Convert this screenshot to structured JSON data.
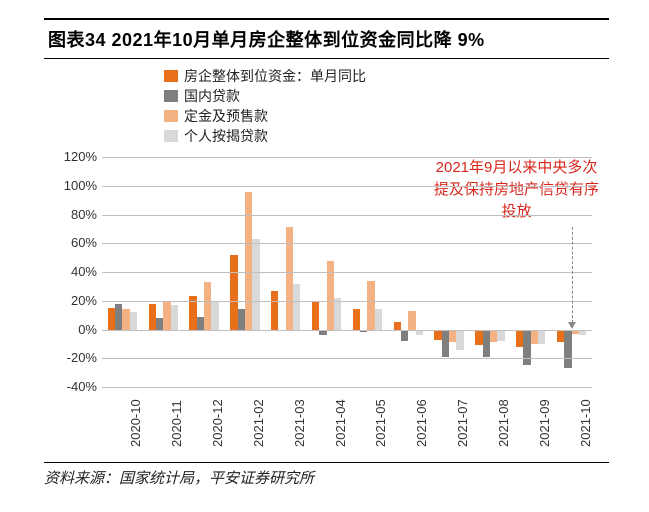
{
  "title": "图表34   2021年10月单月房企整体到位资金同比降 9%",
  "source": "资料来源：国家统计局，平安证券研究所",
  "annotation": "2021年9月以来中央多次提及保持房地产信贷有序投放",
  "legend": [
    {
      "label": "房企整体到位资金：单月同比",
      "color": "#e8701a"
    },
    {
      "label": "国内贷款",
      "color": "#7f7f7f"
    },
    {
      "label": "定金及预售款",
      "color": "#f4b183"
    },
    {
      "label": "个人按揭贷款",
      "color": "#d9d9d9"
    }
  ],
  "chart": {
    "type": "grouped-bar",
    "ylim": [
      -40,
      120
    ],
    "ytick_step": 20,
    "y_suffix": "%",
    "grid_color": "#bfbfbf",
    "background_color": "#ffffff",
    "bar_width_group": 0.72,
    "annotation_arrow_category_index": 11,
    "categories": [
      "2020-10",
      "2020-11",
      "2020-12",
      "2021-02",
      "2021-03",
      "2021-04",
      "2021-05",
      "2021-06",
      "2021-07",
      "2021-08",
      "2021-09",
      "2021-10"
    ],
    "series": [
      {
        "key": "overall",
        "color": "#e8701a",
        "values": [
          15,
          18,
          23,
          52,
          27,
          20,
          14,
          5,
          -7,
          -11,
          -12,
          -9
        ]
      },
      {
        "key": "domestic_loan",
        "color": "#7f7f7f",
        "values": [
          18,
          8,
          9,
          14,
          0,
          -4,
          -2,
          -8,
          -19,
          -19,
          -25,
          -27
        ]
      },
      {
        "key": "deposit_presale",
        "color": "#f4b183",
        "values": [
          14,
          19,
          33,
          96,
          71,
          48,
          34,
          13,
          -9,
          -9,
          -10,
          -3
        ]
      },
      {
        "key": "mortgage",
        "color": "#d9d9d9",
        "values": [
          12,
          17,
          19,
          63,
          32,
          22,
          14,
          -4,
          -14,
          -8,
          -10,
          -4
        ]
      }
    ]
  }
}
